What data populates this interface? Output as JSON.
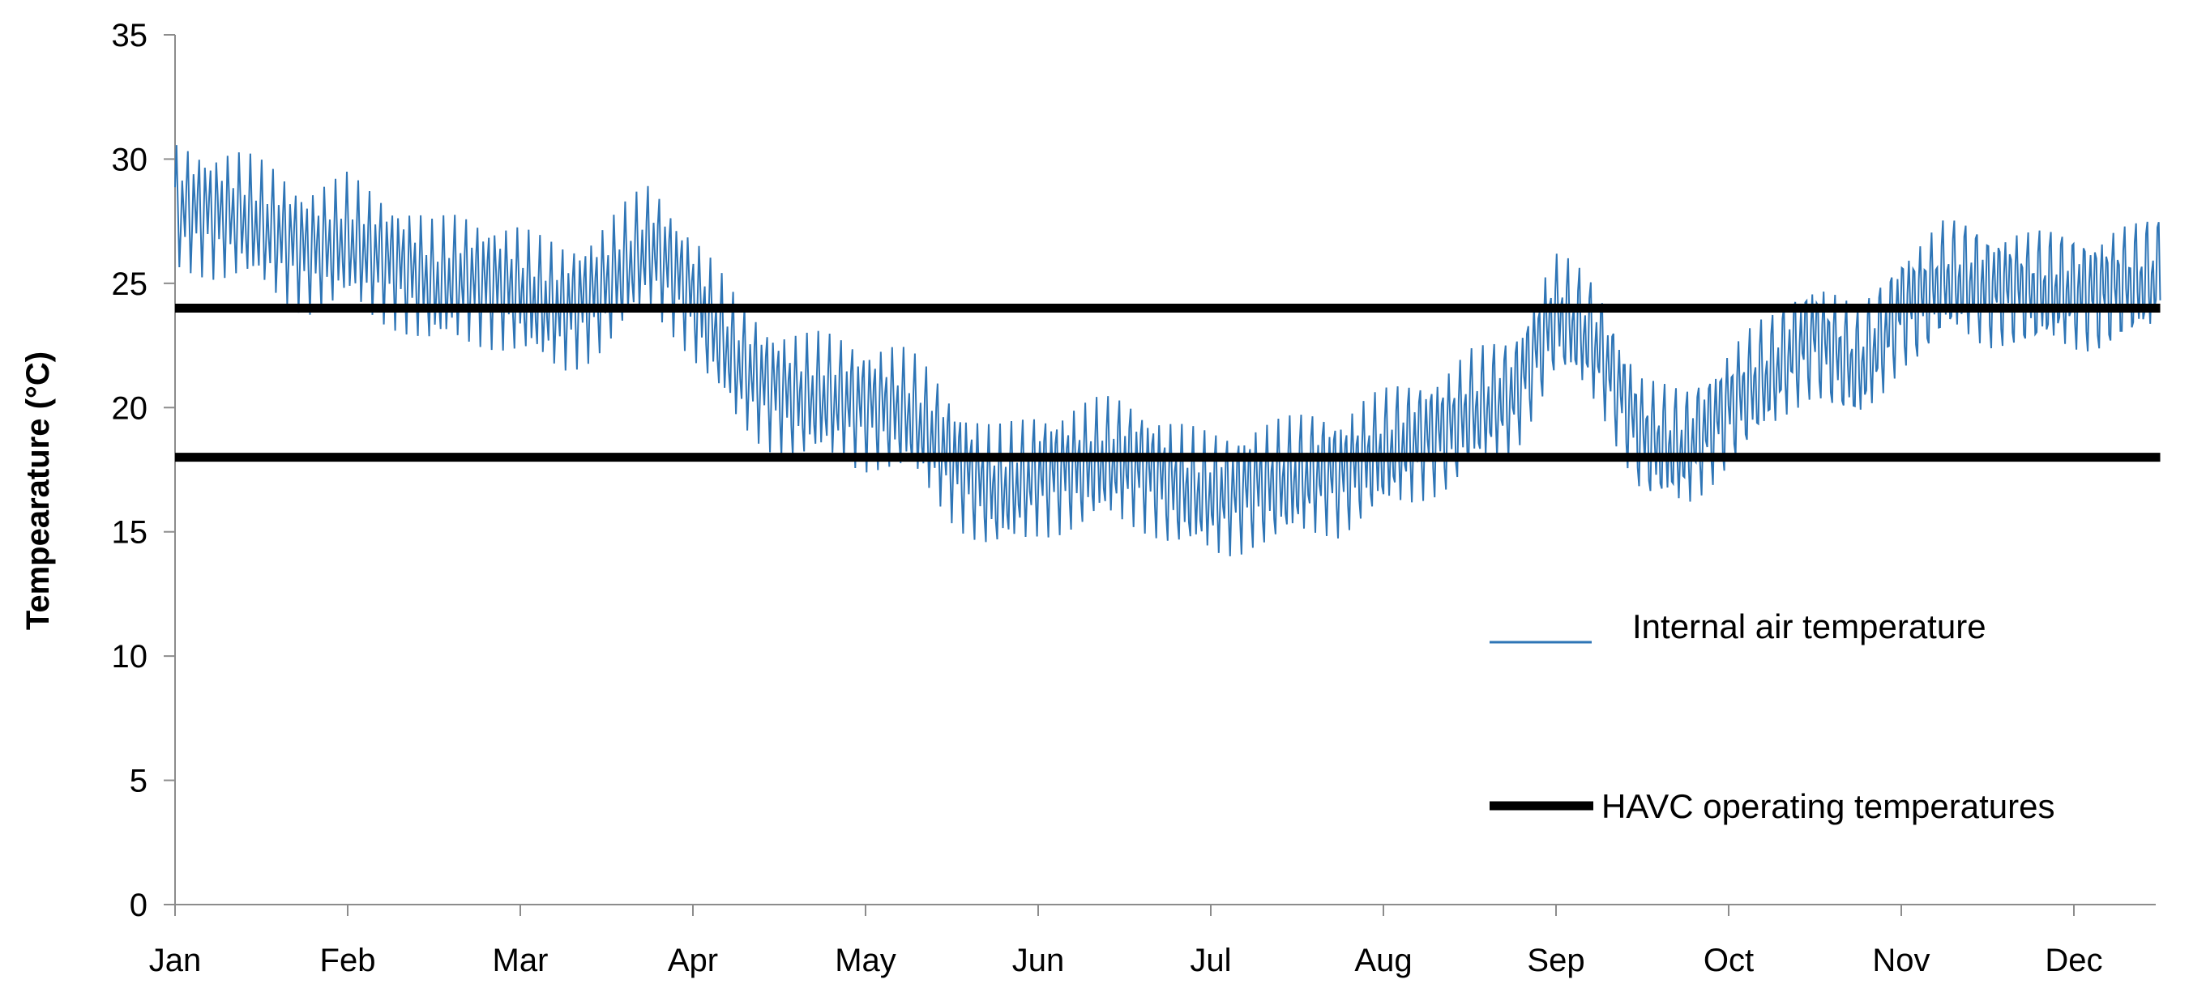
{
  "chart_data": {
    "type": "line",
    "title": "",
    "xlabel": "",
    "ylabel": "Tempearature (°C)",
    "ylim": [
      0,
      35
    ],
    "yticks": [
      0,
      5,
      10,
      15,
      20,
      25,
      30,
      35
    ],
    "categories": [
      "Jan",
      "Feb",
      "Mar",
      "Apr",
      "May",
      "Jun",
      "Jul",
      "Aug",
      "Sep",
      "Oct",
      "Nov",
      "Dec"
    ],
    "x_unit": "month",
    "grid": false,
    "legend_position": "right",
    "series": [
      {
        "name": "Internal air temperature",
        "color": "#2e75b6",
        "x": [
          0,
          0.25,
          0.5,
          0.75,
          1.0,
          1.25,
          1.5,
          1.75,
          2.0,
          2.25,
          2.5,
          2.75,
          3.0,
          3.25,
          3.5,
          3.75,
          4.0,
          4.25,
          4.5,
          4.75,
          5.0,
          5.25,
          5.5,
          5.75,
          6.0,
          6.25,
          6.5,
          6.75,
          7.0,
          7.25,
          7.5,
          7.75,
          8.0,
          8.25,
          8.5,
          8.75,
          9.0,
          9.25,
          9.5,
          9.75,
          10.0,
          10.25,
          10.5,
          10.75,
          11.0,
          11.25,
          11.5
        ],
        "y": [
          28.0,
          27.0,
          26.8,
          26.8,
          27.6,
          26.0,
          24.2,
          24.5,
          25.0,
          24.8,
          25.2,
          25.8,
          23.8,
          22.0,
          21.5,
          20.8,
          19.5,
          19.0,
          18.0,
          17.5,
          17.8,
          17.2,
          17.0,
          17.0,
          17.2,
          17.5,
          16.8,
          16.5,
          18.0,
          19.5,
          20.5,
          20.2,
          23.0,
          22.0,
          19.5,
          19.0,
          20.0,
          20.5,
          22.5,
          22.0,
          24.8,
          25.2,
          24.0,
          24.2,
          25.0,
          25.8,
          25.5
        ]
      },
      {
        "name": "HAVC operating temperatures",
        "color": "#000000",
        "lines": [
          18,
          24
        ]
      }
    ]
  }
}
